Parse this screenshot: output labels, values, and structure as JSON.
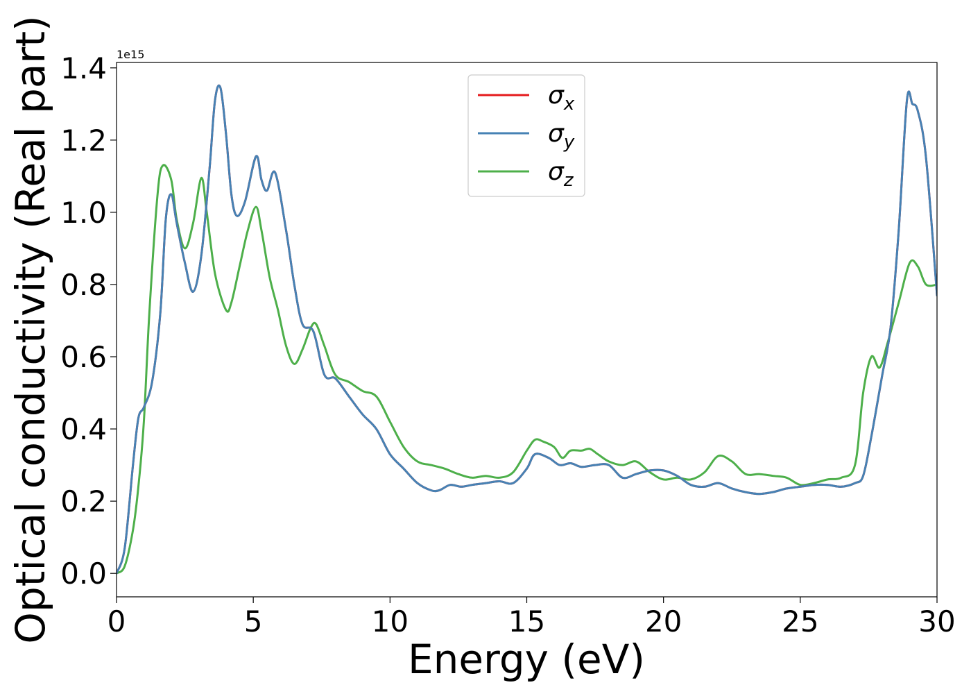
{
  "chart_data": {
    "type": "line",
    "title": "",
    "xlabel": "Energy (eV)",
    "ylabel": "Optical conductivity (Real part)",
    "y_offset_label": "1e15",
    "xlim": [
      0,
      30
    ],
    "ylim": [
      -0.065,
      1.415
    ],
    "x_ticks": [
      0,
      5,
      10,
      15,
      20,
      25,
      30
    ],
    "x_tick_labels": [
      "0",
      "5",
      "10",
      "15",
      "20",
      "25",
      "30"
    ],
    "y_ticks": [
      0.0,
      0.2,
      0.4,
      0.6,
      0.8,
      1.0,
      1.2,
      1.4
    ],
    "y_tick_labels": [
      "0.0",
      "0.2",
      "0.4",
      "0.6",
      "0.8",
      "1.0",
      "1.2",
      "1.4"
    ],
    "grid": false,
    "legend_position": "top-center",
    "series": [
      {
        "name": "σx",
        "name_base": "σ",
        "name_sub": "x",
        "color": "#e41a1c",
        "x": [
          0,
          0.3,
          0.6,
          0.8,
          1.0,
          1.3,
          1.6,
          1.8,
          2.0,
          2.2,
          2.5,
          2.8,
          3.1,
          3.4,
          3.6,
          3.8,
          4.0,
          4.2,
          4.4,
          4.7,
          5.1,
          5.3,
          5.5,
          5.8,
          6.2,
          6.5,
          6.8,
          7.2,
          7.6,
          8.0,
          8.5,
          9.0,
          9.5,
          10.0,
          10.5,
          11.0,
          11.5,
          11.8,
          12.2,
          12.6,
          13.0,
          13.5,
          14.0,
          14.5,
          15.0,
          15.3,
          15.8,
          16.2,
          16.6,
          17.0,
          17.5,
          18.0,
          18.5,
          19.0,
          19.5,
          20.0,
          20.5,
          21.0,
          21.5,
          22.0,
          22.5,
          23.0,
          23.5,
          24.0,
          24.5,
          25.0,
          25.5,
          26.0,
          26.5,
          27.0,
          27.3,
          27.6,
          28.0,
          28.3,
          28.6,
          28.9,
          29.1,
          29.3,
          29.6,
          30.0
        ],
        "y": [
          0.0,
          0.07,
          0.3,
          0.43,
          0.46,
          0.53,
          0.72,
          0.98,
          1.05,
          0.97,
          0.86,
          0.78,
          0.88,
          1.12,
          1.31,
          1.345,
          1.22,
          1.05,
          0.99,
          1.03,
          1.155,
          1.09,
          1.06,
          1.11,
          0.95,
          0.8,
          0.69,
          0.67,
          0.55,
          0.54,
          0.49,
          0.44,
          0.4,
          0.33,
          0.29,
          0.25,
          0.23,
          0.23,
          0.245,
          0.24,
          0.245,
          0.25,
          0.255,
          0.25,
          0.29,
          0.33,
          0.32,
          0.3,
          0.305,
          0.295,
          0.3,
          0.3,
          0.265,
          0.275,
          0.285,
          0.285,
          0.27,
          0.245,
          0.24,
          0.25,
          0.235,
          0.225,
          0.22,
          0.225,
          0.235,
          0.24,
          0.245,
          0.245,
          0.24,
          0.25,
          0.27,
          0.38,
          0.55,
          0.68,
          0.95,
          1.31,
          1.3,
          1.28,
          1.15,
          0.77
        ]
      },
      {
        "name": "σy",
        "name_base": "σ",
        "name_sub": "y",
        "color": "#4682b4",
        "x": [
          0,
          0.3,
          0.6,
          0.8,
          1.0,
          1.3,
          1.6,
          1.8,
          2.0,
          2.2,
          2.5,
          2.8,
          3.1,
          3.4,
          3.6,
          3.8,
          4.0,
          4.2,
          4.4,
          4.7,
          5.1,
          5.3,
          5.5,
          5.8,
          6.2,
          6.5,
          6.8,
          7.2,
          7.6,
          8.0,
          8.5,
          9.0,
          9.5,
          10.0,
          10.5,
          11.0,
          11.5,
          11.8,
          12.2,
          12.6,
          13.0,
          13.5,
          14.0,
          14.5,
          15.0,
          15.3,
          15.8,
          16.2,
          16.6,
          17.0,
          17.5,
          18.0,
          18.5,
          19.0,
          19.5,
          20.0,
          20.5,
          21.0,
          21.5,
          22.0,
          22.5,
          23.0,
          23.5,
          24.0,
          24.5,
          25.0,
          25.5,
          26.0,
          26.5,
          27.0,
          27.3,
          27.6,
          28.0,
          28.3,
          28.6,
          28.9,
          29.1,
          29.3,
          29.6,
          30.0
        ],
        "y": [
          0.0,
          0.07,
          0.3,
          0.43,
          0.46,
          0.53,
          0.72,
          0.98,
          1.05,
          0.97,
          0.86,
          0.78,
          0.88,
          1.12,
          1.31,
          1.345,
          1.22,
          1.05,
          0.99,
          1.03,
          1.155,
          1.09,
          1.06,
          1.11,
          0.95,
          0.8,
          0.69,
          0.67,
          0.55,
          0.54,
          0.49,
          0.44,
          0.4,
          0.33,
          0.29,
          0.25,
          0.23,
          0.23,
          0.245,
          0.24,
          0.245,
          0.25,
          0.255,
          0.25,
          0.29,
          0.33,
          0.32,
          0.3,
          0.305,
          0.295,
          0.3,
          0.3,
          0.265,
          0.275,
          0.285,
          0.285,
          0.27,
          0.245,
          0.24,
          0.25,
          0.235,
          0.225,
          0.22,
          0.225,
          0.235,
          0.24,
          0.245,
          0.245,
          0.24,
          0.25,
          0.27,
          0.38,
          0.55,
          0.68,
          0.95,
          1.31,
          1.3,
          1.28,
          1.15,
          0.77
        ]
      },
      {
        "name": "σz",
        "name_base": "σ",
        "name_sub": "z",
        "color": "#4daf4a",
        "x": [
          0,
          0.3,
          0.6,
          0.8,
          1.0,
          1.2,
          1.5,
          1.7,
          2.0,
          2.2,
          2.5,
          2.8,
          3.1,
          3.3,
          3.6,
          4.0,
          4.2,
          4.5,
          4.8,
          5.1,
          5.3,
          5.6,
          5.9,
          6.2,
          6.5,
          6.8,
          7.1,
          7.3,
          7.6,
          8.0,
          8.5,
          9.0,
          9.5,
          10.0,
          10.5,
          11.0,
          11.5,
          12.0,
          12.5,
          13.0,
          13.5,
          14.0,
          14.5,
          15.0,
          15.3,
          15.6,
          16.0,
          16.3,
          16.6,
          17.0,
          17.3,
          17.6,
          18.0,
          18.5,
          19.0,
          19.5,
          20.0,
          20.5,
          21.0,
          21.5,
          22.0,
          22.5,
          23.0,
          23.5,
          24.0,
          24.5,
          25.0,
          25.5,
          26.0,
          26.5,
          27.0,
          27.3,
          27.6,
          27.9,
          28.2,
          28.6,
          29.0,
          29.3,
          29.6,
          30.0
        ],
        "y": [
          0.0,
          0.02,
          0.12,
          0.24,
          0.42,
          0.72,
          1.05,
          1.13,
          1.09,
          0.98,
          0.9,
          0.97,
          1.095,
          1.0,
          0.83,
          0.73,
          0.75,
          0.85,
          0.95,
          1.015,
          0.95,
          0.82,
          0.73,
          0.63,
          0.58,
          0.62,
          0.68,
          0.69,
          0.63,
          0.55,
          0.53,
          0.505,
          0.49,
          0.42,
          0.35,
          0.31,
          0.3,
          0.29,
          0.275,
          0.265,
          0.27,
          0.265,
          0.28,
          0.34,
          0.37,
          0.365,
          0.35,
          0.32,
          0.34,
          0.34,
          0.345,
          0.33,
          0.31,
          0.3,
          0.31,
          0.28,
          0.26,
          0.265,
          0.26,
          0.28,
          0.325,
          0.31,
          0.275,
          0.275,
          0.27,
          0.265,
          0.245,
          0.25,
          0.26,
          0.265,
          0.3,
          0.5,
          0.6,
          0.57,
          0.64,
          0.75,
          0.86,
          0.85,
          0.8,
          0.8
        ]
      }
    ]
  }
}
